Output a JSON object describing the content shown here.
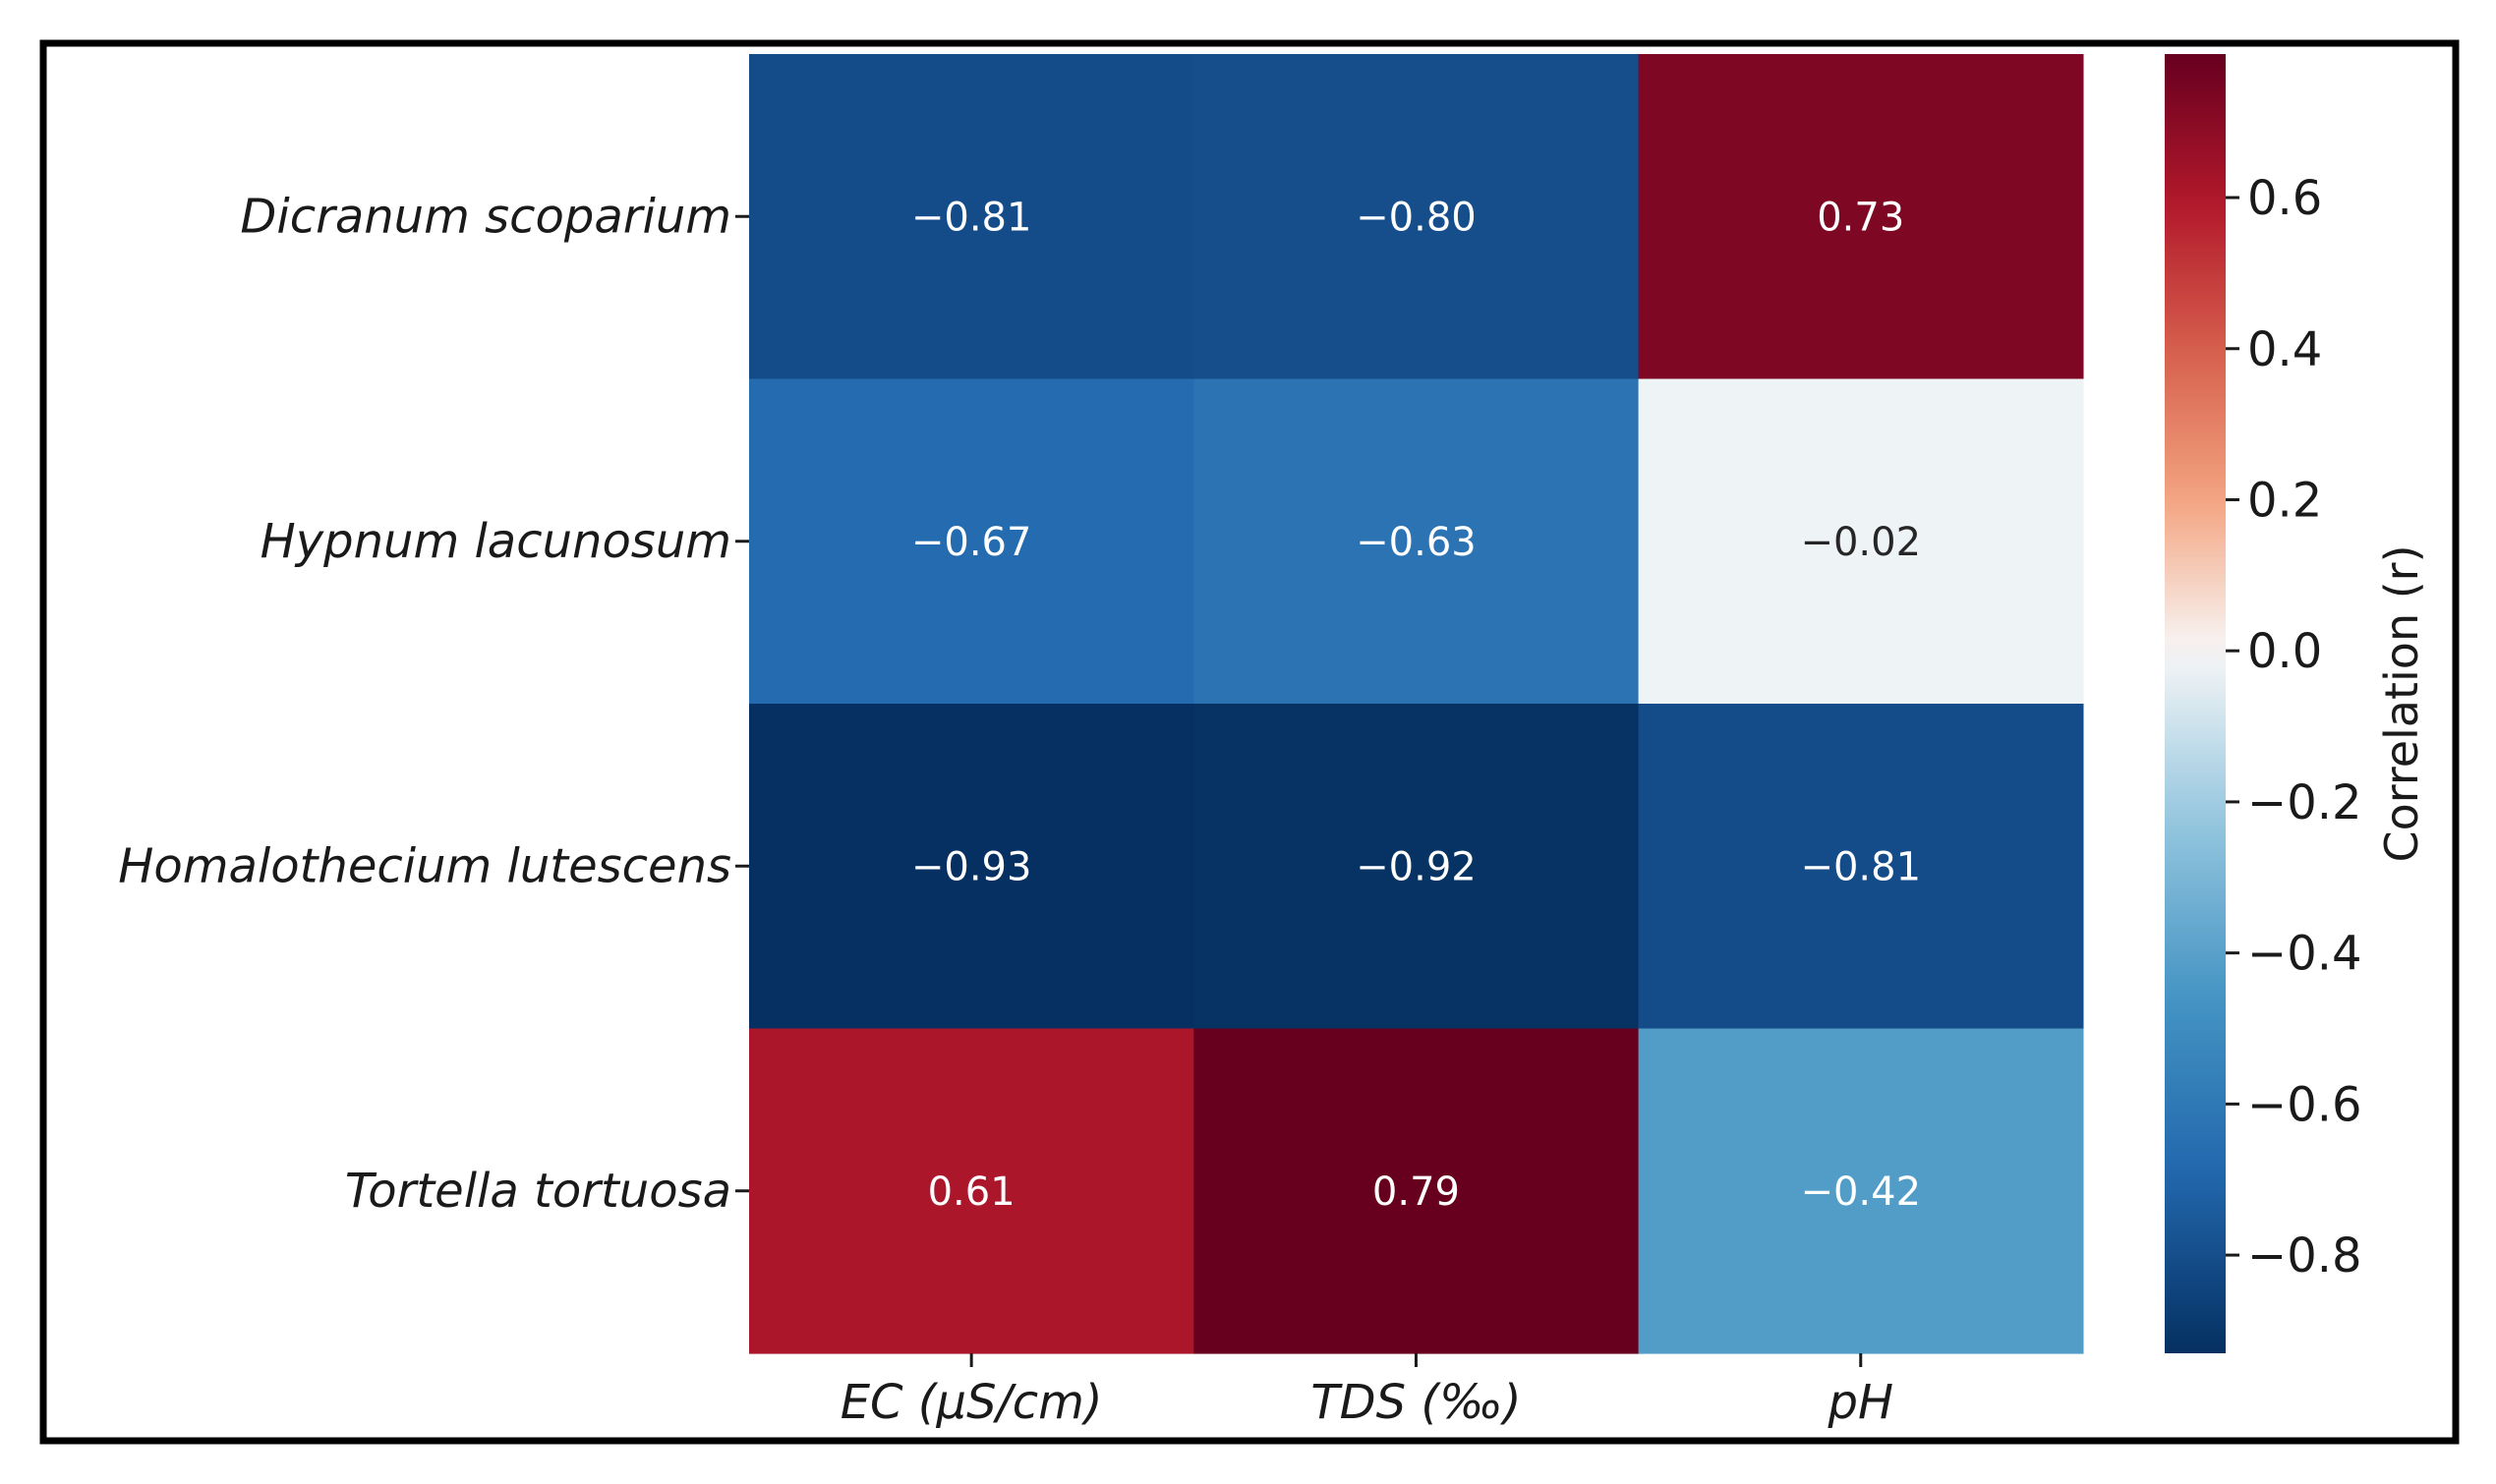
{
  "chart_data": {
    "type": "heatmap",
    "title": "",
    "rows": [
      "Dicranum scoparium",
      "Hypnum lacunosum",
      "Homalothecium lutescens",
      "Tortella tortuosa"
    ],
    "columns": [
      "EC (µS/cm)",
      "TDS (‰)",
      "pH"
    ],
    "values": [
      [
        -0.81,
        -0.8,
        0.73
      ],
      [
        -0.67,
        -0.63,
        -0.02
      ],
      [
        -0.93,
        -0.92,
        -0.81
      ],
      [
        0.61,
        0.79,
        -0.42
      ]
    ],
    "value_labels": [
      [
        "−0.81",
        "−0.80",
        "0.73"
      ],
      [
        "−0.67",
        "−0.63",
        "−0.02"
      ],
      [
        "−0.93",
        "−0.92",
        "−0.81"
      ],
      [
        "0.61",
        "0.79",
        "−0.42"
      ]
    ],
    "colormap": "RdBu_r",
    "colorbar": {
      "label": "Correlation (r)",
      "range": [
        -0.93,
        0.79
      ],
      "ticks": [
        0.6,
        0.4,
        0.2,
        0.0,
        -0.2,
        -0.4,
        -0.6,
        -0.8
      ],
      "tick_labels": [
        "0.6",
        "0.4",
        "0.2",
        "0.0",
        "−0.2",
        "−0.4",
        "−0.6",
        "−0.8"
      ]
    }
  }
}
